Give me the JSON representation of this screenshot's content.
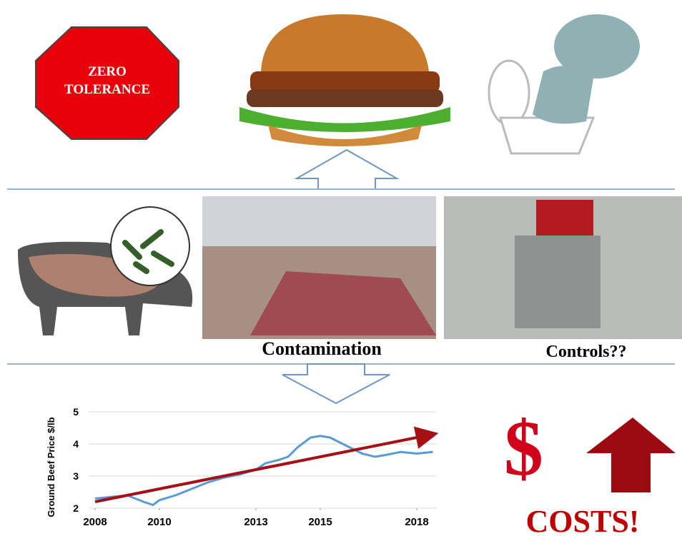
{
  "stop_sign": {
    "lines": [
      "ZERO",
      "TOLERANCE"
    ]
  },
  "labels": {
    "contamination": "Contamination",
    "controls": "Controls??",
    "costs": "COSTS!"
  },
  "chart_data": {
    "type": "line",
    "y_label": "Ground Beef Price $/lb",
    "x": [
      2008,
      2008.5,
      2009,
      2009.5,
      2009.8,
      2010,
      2010.5,
      2011,
      2011.5,
      2012,
      2012.5,
      2013,
      2013.3,
      2013.7,
      2014,
      2014.3,
      2014.7,
      2015,
      2015.3,
      2015.7,
      2016,
      2016.3,
      2016.7,
      2017,
      2017.5,
      2018,
      2018.5
    ],
    "series": [
      {
        "color": "#5b9bd5",
        "values": [
          2.3,
          2.35,
          2.4,
          2.2,
          2.1,
          2.25,
          2.4,
          2.6,
          2.8,
          2.95,
          3.05,
          3.2,
          3.4,
          3.5,
          3.6,
          3.9,
          4.2,
          4.25,
          4.2,
          4.0,
          3.85,
          3.7,
          3.6,
          3.65,
          3.75,
          3.7,
          3.75
        ]
      }
    ],
    "trend": {
      "color": "#a50f15",
      "x": [
        2008,
        2018.5
      ],
      "values": [
        2.2,
        4.3
      ]
    },
    "xlim": [
      2007.8,
      2018.6
    ],
    "xticks": [
      2008,
      2010,
      2013,
      2015,
      2018
    ],
    "ylim": [
      2,
      5
    ],
    "yticks": [
      2,
      3,
      4,
      5
    ],
    "grid": true
  }
}
